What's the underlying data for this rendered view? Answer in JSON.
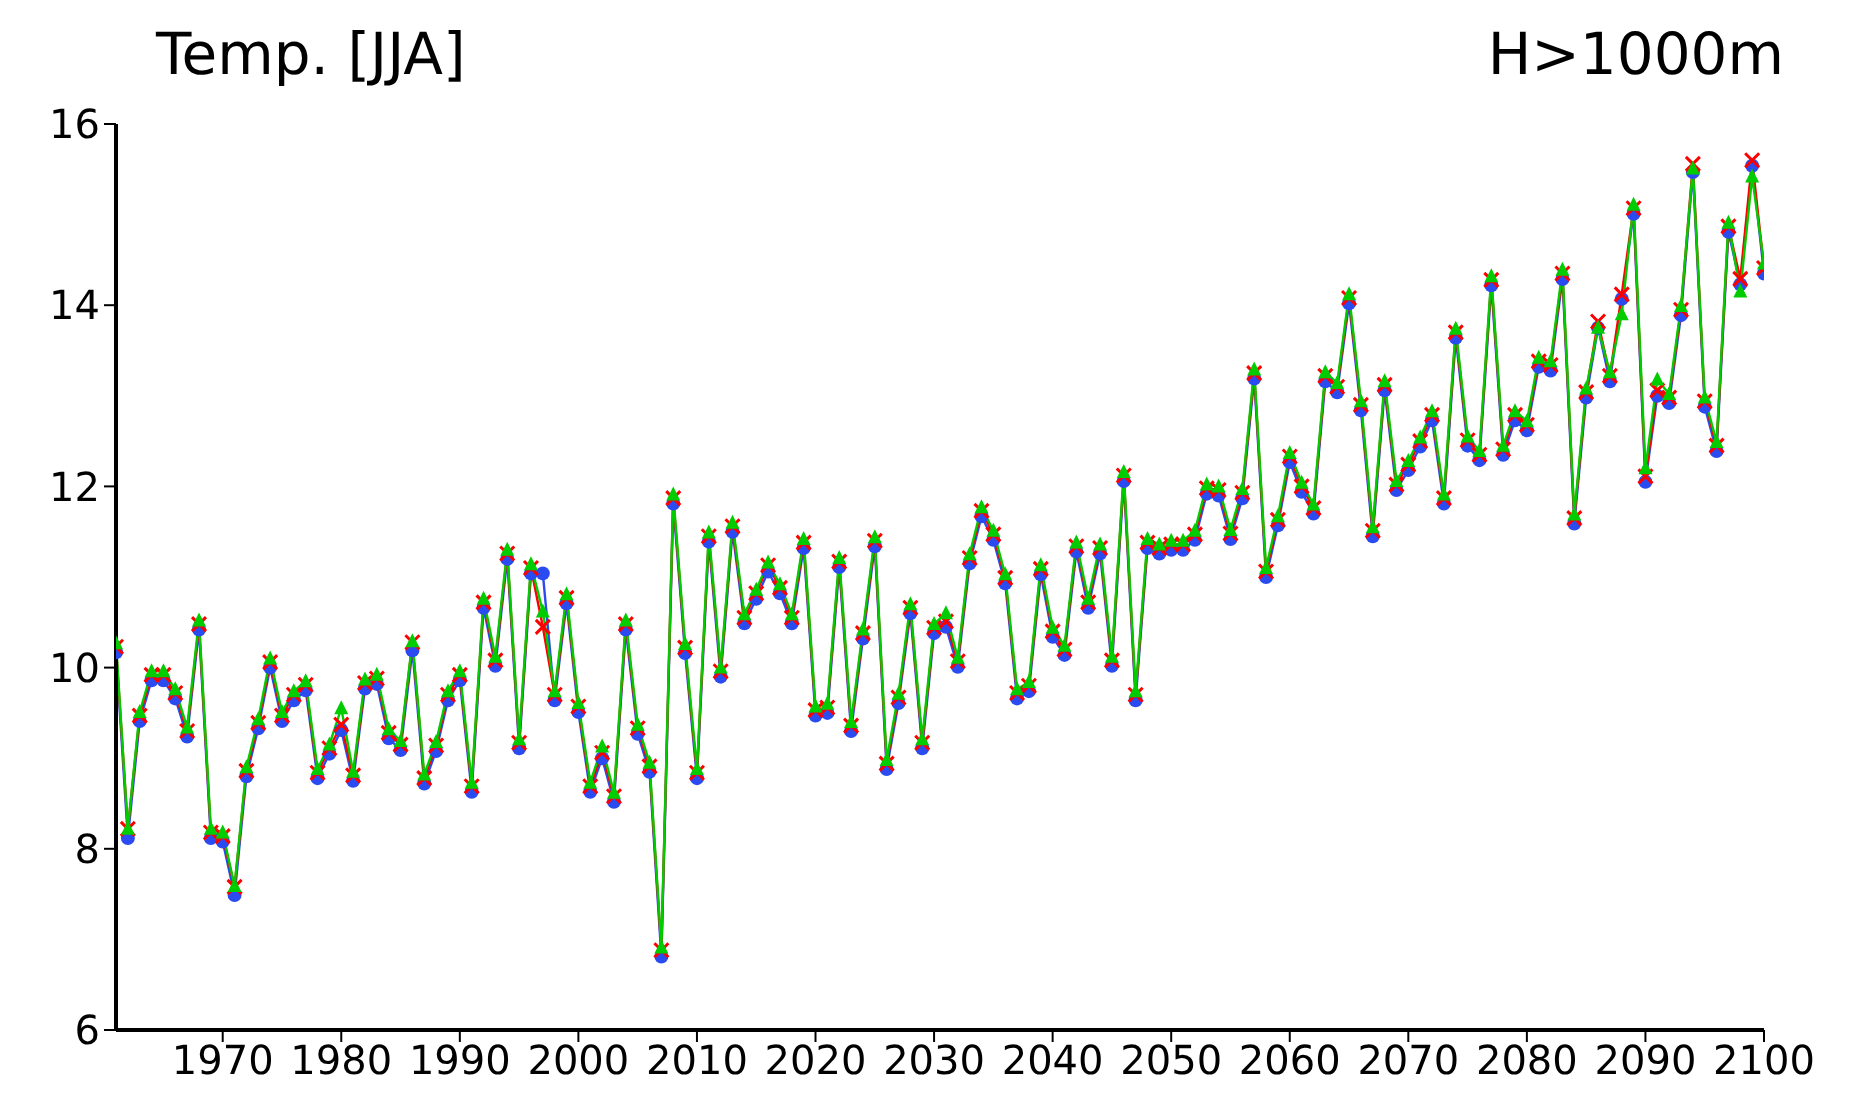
{
  "chart_data": {
    "type": "line",
    "title": "Temp. [JJA]",
    "subtitle": "H>1000m",
    "x": [
      1961,
      1962,
      1963,
      1964,
      1965,
      1966,
      1967,
      1968,
      1969,
      1970,
      1971,
      1972,
      1973,
      1974,
      1975,
      1976,
      1977,
      1978,
      1979,
      1980,
      1981,
      1982,
      1983,
      1984,
      1985,
      1986,
      1987,
      1988,
      1989,
      1990,
      1991,
      1992,
      1993,
      1994,
      1995,
      1996,
      1997,
      1998,
      1999,
      2000,
      2001,
      2002,
      2003,
      2004,
      2005,
      2006,
      2007,
      2008,
      2009,
      2010,
      2011,
      2012,
      2013,
      2014,
      2015,
      2016,
      2017,
      2018,
      2019,
      2020,
      2021,
      2022,
      2023,
      2024,
      2025,
      2026,
      2027,
      2028,
      2029,
      2030,
      2031,
      2032,
      2033,
      2034,
      2035,
      2036,
      2037,
      2038,
      2039,
      2040,
      2041,
      2042,
      2043,
      2044,
      2045,
      2046,
      2047,
      2048,
      2049,
      2050,
      2051,
      2052,
      2053,
      2054,
      2055,
      2056,
      2057,
      2058,
      2059,
      2060,
      2061,
      2062,
      2063,
      2064,
      2065,
      2066,
      2067,
      2068,
      2069,
      2070,
      2071,
      2072,
      2073,
      2074,
      2075,
      2076,
      2077,
      2078,
      2079,
      2080,
      2081,
      2082,
      2083,
      2084,
      2085,
      2086,
      2087,
      2088,
      2089,
      2090,
      2091,
      2092,
      2093,
      2094,
      2095,
      2096,
      2097,
      2098,
      2099,
      2100
    ],
    "xlim": [
      1961,
      2100
    ],
    "xticks": [
      1970,
      1980,
      1990,
      2000,
      2010,
      2020,
      2030,
      2040,
      2050,
      2060,
      2070,
      2080,
      2090,
      2100
    ],
    "ylim": [
      6,
      16
    ],
    "yticks": [
      6,
      8,
      10,
      12,
      14,
      16
    ],
    "series": [
      {
        "color": "#2a4bf0",
        "marker": "circle",
        "values": [
          10.17,
          8.12,
          9.41,
          9.86,
          9.86,
          9.66,
          9.24,
          10.42,
          8.12,
          8.08,
          7.49,
          8.8,
          9.33,
          10.0,
          9.41,
          9.64,
          9.75,
          8.78,
          9.05,
          9.31,
          8.75,
          9.77,
          9.82,
          9.22,
          9.09,
          10.19,
          8.72,
          9.08,
          9.64,
          9.86,
          8.63,
          10.66,
          10.02,
          11.2,
          9.11,
          11.04,
          11.04,
          9.64,
          10.71,
          9.51,
          8.63,
          9.0,
          8.52,
          10.42,
          9.27,
          8.85,
          6.81,
          11.81,
          10.16,
          8.78,
          11.39,
          9.9,
          11.5,
          10.49,
          10.76,
          11.06,
          10.82,
          10.49,
          11.32,
          9.47,
          9.5,
          11.11,
          9.3,
          10.32,
          11.34,
          8.88,
          9.61,
          10.6,
          9.11,
          10.38,
          10.45,
          10.01,
          11.15,
          11.67,
          11.41,
          10.93,
          9.66,
          9.74,
          11.03,
          10.34,
          10.14,
          11.28,
          10.66,
          11.26,
          10.02,
          12.06,
          9.64,
          11.32,
          11.26,
          11.3,
          11.3,
          11.41,
          11.92,
          11.9,
          11.42,
          11.87,
          13.19,
          11.0,
          11.57,
          12.27,
          11.94,
          11.7,
          13.16,
          13.04,
          14.02,
          12.84,
          11.45,
          13.06,
          11.96,
          12.18,
          12.44,
          12.73,
          11.81,
          13.64,
          12.45,
          12.29,
          14.22,
          12.35,
          12.73,
          12.62,
          13.32,
          13.28,
          14.29,
          11.59,
          12.98,
          13.75,
          13.16,
          14.07,
          15.01,
          12.05,
          13.0,
          12.92,
          13.89,
          15.47,
          12.88,
          12.39,
          14.81,
          14.23,
          15.54,
          14.35
        ]
      },
      {
        "color": "#ff0000",
        "marker": "cross",
        "values": [
          10.23,
          8.22,
          9.47,
          9.92,
          9.92,
          9.72,
          9.3,
          10.48,
          8.18,
          8.14,
          7.58,
          8.86,
          9.39,
          10.06,
          9.47,
          9.7,
          9.81,
          8.84,
          9.11,
          9.37,
          8.81,
          9.83,
          9.88,
          9.28,
          9.15,
          10.28,
          8.78,
          9.14,
          9.7,
          9.92,
          8.69,
          10.72,
          10.08,
          11.26,
          9.17,
          11.1,
          10.45,
          9.7,
          10.77,
          9.57,
          8.69,
          9.06,
          8.58,
          10.48,
          9.33,
          8.91,
          6.88,
          11.87,
          10.22,
          8.84,
          11.45,
          9.96,
          11.56,
          10.55,
          10.82,
          11.13,
          10.88,
          10.55,
          11.38,
          9.53,
          9.56,
          11.17,
          9.36,
          10.38,
          11.4,
          8.94,
          9.67,
          10.66,
          9.17,
          10.44,
          10.51,
          10.07,
          11.21,
          11.73,
          11.47,
          10.99,
          9.72,
          9.8,
          11.09,
          10.4,
          10.2,
          11.34,
          10.72,
          11.32,
          10.08,
          12.12,
          9.7,
          11.38,
          11.32,
          11.36,
          11.36,
          11.47,
          11.98,
          11.96,
          11.48,
          11.93,
          13.25,
          11.06,
          11.63,
          12.33,
          12.0,
          11.76,
          13.22,
          13.1,
          14.08,
          12.9,
          11.51,
          13.12,
          12.02,
          12.24,
          12.5,
          12.79,
          11.87,
          13.7,
          12.51,
          12.35,
          14.28,
          12.41,
          12.79,
          12.68,
          13.38,
          13.34,
          14.35,
          11.65,
          13.04,
          13.82,
          13.22,
          14.12,
          15.07,
          12.11,
          13.06,
          12.98,
          13.95,
          15.56,
          12.94,
          12.45,
          14.87,
          14.29,
          15.6,
          14.41
        ]
      },
      {
        "color": "#00cc00",
        "marker": "triangle",
        "values": [
          10.27,
          8.22,
          9.51,
          9.96,
          9.96,
          9.76,
          9.34,
          10.52,
          8.22,
          8.18,
          7.59,
          8.9,
          9.43,
          10.1,
          9.51,
          9.74,
          9.85,
          8.88,
          9.15,
          9.55,
          8.85,
          9.87,
          9.92,
          9.32,
          9.19,
          10.29,
          8.82,
          9.18,
          9.74,
          9.96,
          8.73,
          10.76,
          10.12,
          11.3,
          9.21,
          11.14,
          10.62,
          9.74,
          10.81,
          9.61,
          8.73,
          9.13,
          8.62,
          10.52,
          9.37,
          8.95,
          6.91,
          11.91,
          10.26,
          8.88,
          11.49,
          10.0,
          11.6,
          10.59,
          10.86,
          11.16,
          10.92,
          10.59,
          11.42,
          9.57,
          9.6,
          11.21,
          9.4,
          10.42,
          11.44,
          8.98,
          9.71,
          10.7,
          9.21,
          10.48,
          10.6,
          10.11,
          11.25,
          11.77,
          11.51,
          11.03,
          9.76,
          9.84,
          11.13,
          10.44,
          10.24,
          11.38,
          10.76,
          11.36,
          10.12,
          12.16,
          9.74,
          11.42,
          11.36,
          11.4,
          11.4,
          11.51,
          12.02,
          12.0,
          11.52,
          11.97,
          13.29,
          11.1,
          11.67,
          12.37,
          12.04,
          11.8,
          13.26,
          13.14,
          14.12,
          12.94,
          11.55,
          13.16,
          12.06,
          12.28,
          12.54,
          12.83,
          11.91,
          13.74,
          12.55,
          12.39,
          14.32,
          12.45,
          12.83,
          12.72,
          13.42,
          13.38,
          14.39,
          11.69,
          13.08,
          13.75,
          13.26,
          13.9,
          15.11,
          12.2,
          13.18,
          13.02,
          13.99,
          15.51,
          12.98,
          12.49,
          14.91,
          14.15,
          15.42,
          14.46
        ]
      }
    ]
  }
}
